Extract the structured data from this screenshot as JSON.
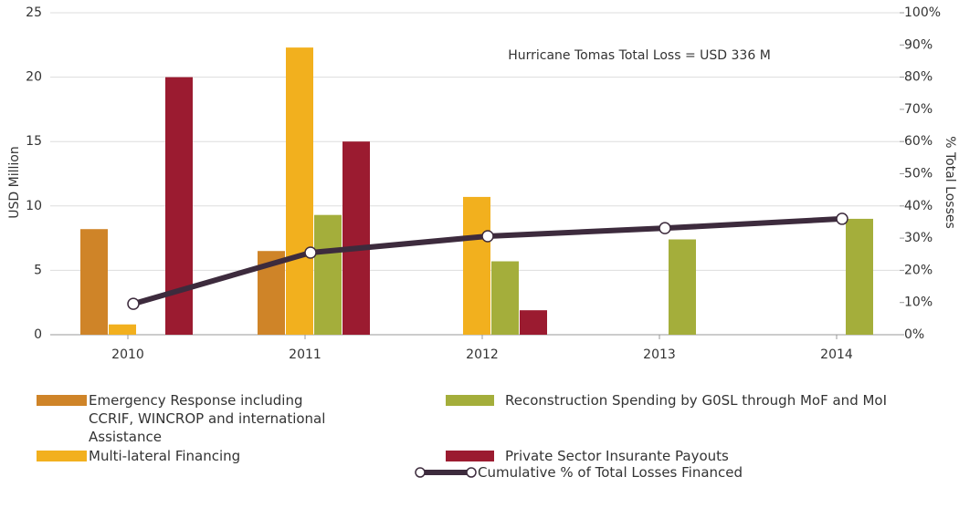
{
  "chart_data": {
    "type": "bar",
    "annotation": "Hurricane Tomas Total Loss = USD 336 M",
    "y_label": "USD Million",
    "y2_label": "% Total Losses",
    "categories": [
      "2010",
      "2011",
      "2012",
      "2013",
      "2014"
    ],
    "series": [
      {
        "name": "Emergency Response including CCRIF, WINCROP and international Assistance",
        "color": "#cf8428",
        "values": [
          8.2,
          6.5,
          null,
          null,
          null
        ]
      },
      {
        "name": "Multi-lateral Financing",
        "color": "#f2b01e",
        "values": [
          0.8,
          22.3,
          10.7,
          null,
          null
        ]
      },
      {
        "name": "Reconstruction Spending by G0SL through MoF and MoI",
        "color": "#a4ae3b",
        "values": [
          null,
          9.3,
          5.7,
          7.4,
          9.0
        ]
      },
      {
        "name": "Private Sector Insurante Payouts",
        "color": "#9b1b30",
        "values": [
          20,
          15,
          1.9,
          null,
          null
        ]
      },
      {
        "name": "Cumulative % of Total Losses Financed",
        "color": "#3d2b3d",
        "type": "line",
        "axis": "y2",
        "values": [
          9.6,
          25.5,
          30.6,
          33.1,
          36
        ]
      }
    ],
    "ylim": [
      0,
      25
    ],
    "yticks": [
      0,
      5,
      10,
      15,
      20,
      25
    ],
    "y2lim": [
      0,
      100
    ],
    "y2ticks": [
      {
        "value": 0,
        "label": "0%"
      },
      {
        "value": 10,
        "label": "10%"
      },
      {
        "value": 20,
        "label": "20%"
      },
      {
        "value": 30,
        "label": "30%"
      },
      {
        "value": 40,
        "label": "40%"
      },
      {
        "value": 50,
        "label": "50%"
      },
      {
        "value": 60,
        "label": "60%"
      },
      {
        "value": 70,
        "label": "70%"
      },
      {
        "value": 80,
        "label": "80%"
      },
      {
        "value": 90,
        "label": "90%"
      },
      {
        "value": 100,
        "label": "100%"
      }
    ],
    "grid": true
  }
}
